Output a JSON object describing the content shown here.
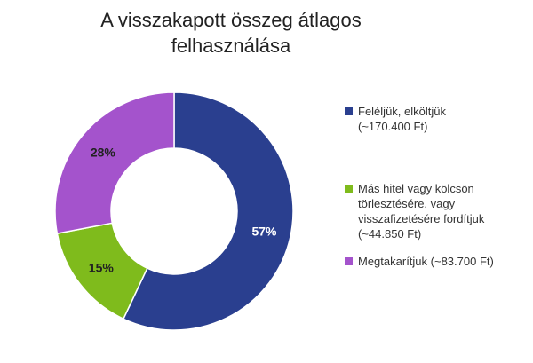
{
  "chart_data": {
    "type": "pie",
    "title_lines": [
      "A visszakapott összeg átlagos",
      "felhasználása"
    ],
    "title": "A visszakapott összeg átlagos felhasználása",
    "categories": [
      "Feléljük, elköltjük (~170.400 Ft)",
      "Más hitel vagy kölcsön törlesztésére, vagy visszafizetésére fordítjuk (~44.850 Ft)",
      "Megtakarítjuk (~83.700 Ft)"
    ],
    "legend_labels": [
      "Feléljük, elköltjük\n(~170.400 Ft)",
      "Más hitel vagy kölcsön\ntörlesztésére, vagy\nvisszafizetésére fordítjuk\n(~44.850 Ft)",
      "Megtakarítjuk (~83.700 Ft)"
    ],
    "values": [
      57,
      15,
      28
    ],
    "value_labels": [
      "57%",
      "15%",
      "28%"
    ],
    "unit": "%",
    "colors": [
      "#2a3f8f",
      "#7fbb1c",
      "#a453cc"
    ],
    "donut": true,
    "legend_position": "right"
  }
}
